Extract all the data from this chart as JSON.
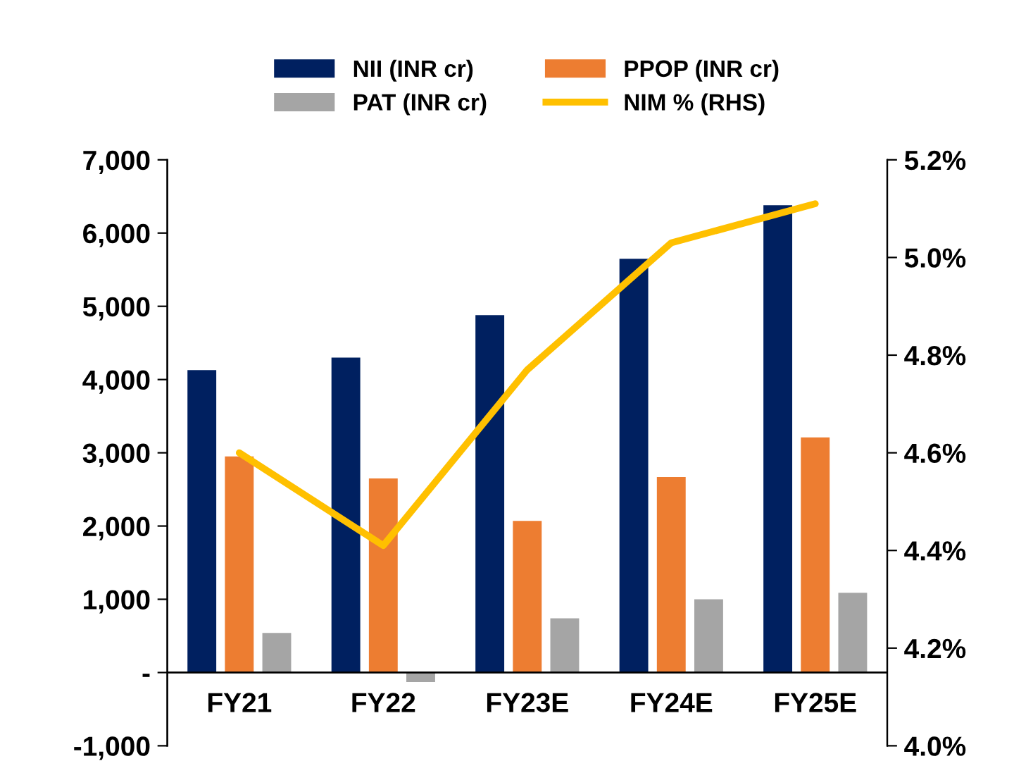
{
  "chart_data": {
    "type": "bar",
    "categories": [
      "FY21",
      "FY22",
      "FY23E",
      "FY24E",
      "FY25E"
    ],
    "series": [
      {
        "name": "NII (INR cr)",
        "color": "#002060",
        "values": [
          4130,
          4300,
          4880,
          5650,
          6380
        ]
      },
      {
        "name": "PPOP (INR cr)",
        "color": "#ed7d31",
        "values": [
          2950,
          2650,
          2070,
          2670,
          3210
        ]
      },
      {
        "name": "PAT (INR cr)",
        "color": "#a5a5a5",
        "values": [
          540,
          -130,
          740,
          1000,
          1090
        ]
      },
      {
        "name": "NIM % (RHS)",
        "color": "#ffc000",
        "type": "line",
        "axis": "y2",
        "values": [
          4.6,
          4.41,
          4.77,
          5.03,
          5.11
        ]
      }
    ],
    "ylim": [
      -1000,
      7000
    ],
    "yticks": [
      {
        "value": -1000,
        "label": "-1,000"
      },
      {
        "value": 0,
        "label": "-"
      },
      {
        "value": 1000,
        "label": "1,000"
      },
      {
        "value": 2000,
        "label": "2,000"
      },
      {
        "value": 3000,
        "label": "3,000"
      },
      {
        "value": 4000,
        "label": "4,000"
      },
      {
        "value": 5000,
        "label": "5,000"
      },
      {
        "value": 6000,
        "label": "6,000"
      },
      {
        "value": 7000,
        "label": "7,000"
      }
    ],
    "y2lim": [
      4.0,
      5.2
    ],
    "y2ticks": [
      {
        "value": 4.0,
        "label": "4.0%"
      },
      {
        "value": 4.2,
        "label": "4.2%"
      },
      {
        "value": 4.4,
        "label": "4.4%"
      },
      {
        "value": 4.6,
        "label": "4.6%"
      },
      {
        "value": 4.8,
        "label": "4.8%"
      },
      {
        "value": 5.0,
        "label": "5.0%"
      },
      {
        "value": 5.2,
        "label": "5.2%"
      }
    ],
    "legend": "top",
    "grid": false,
    "marker": "none",
    "line_style": "solid"
  }
}
